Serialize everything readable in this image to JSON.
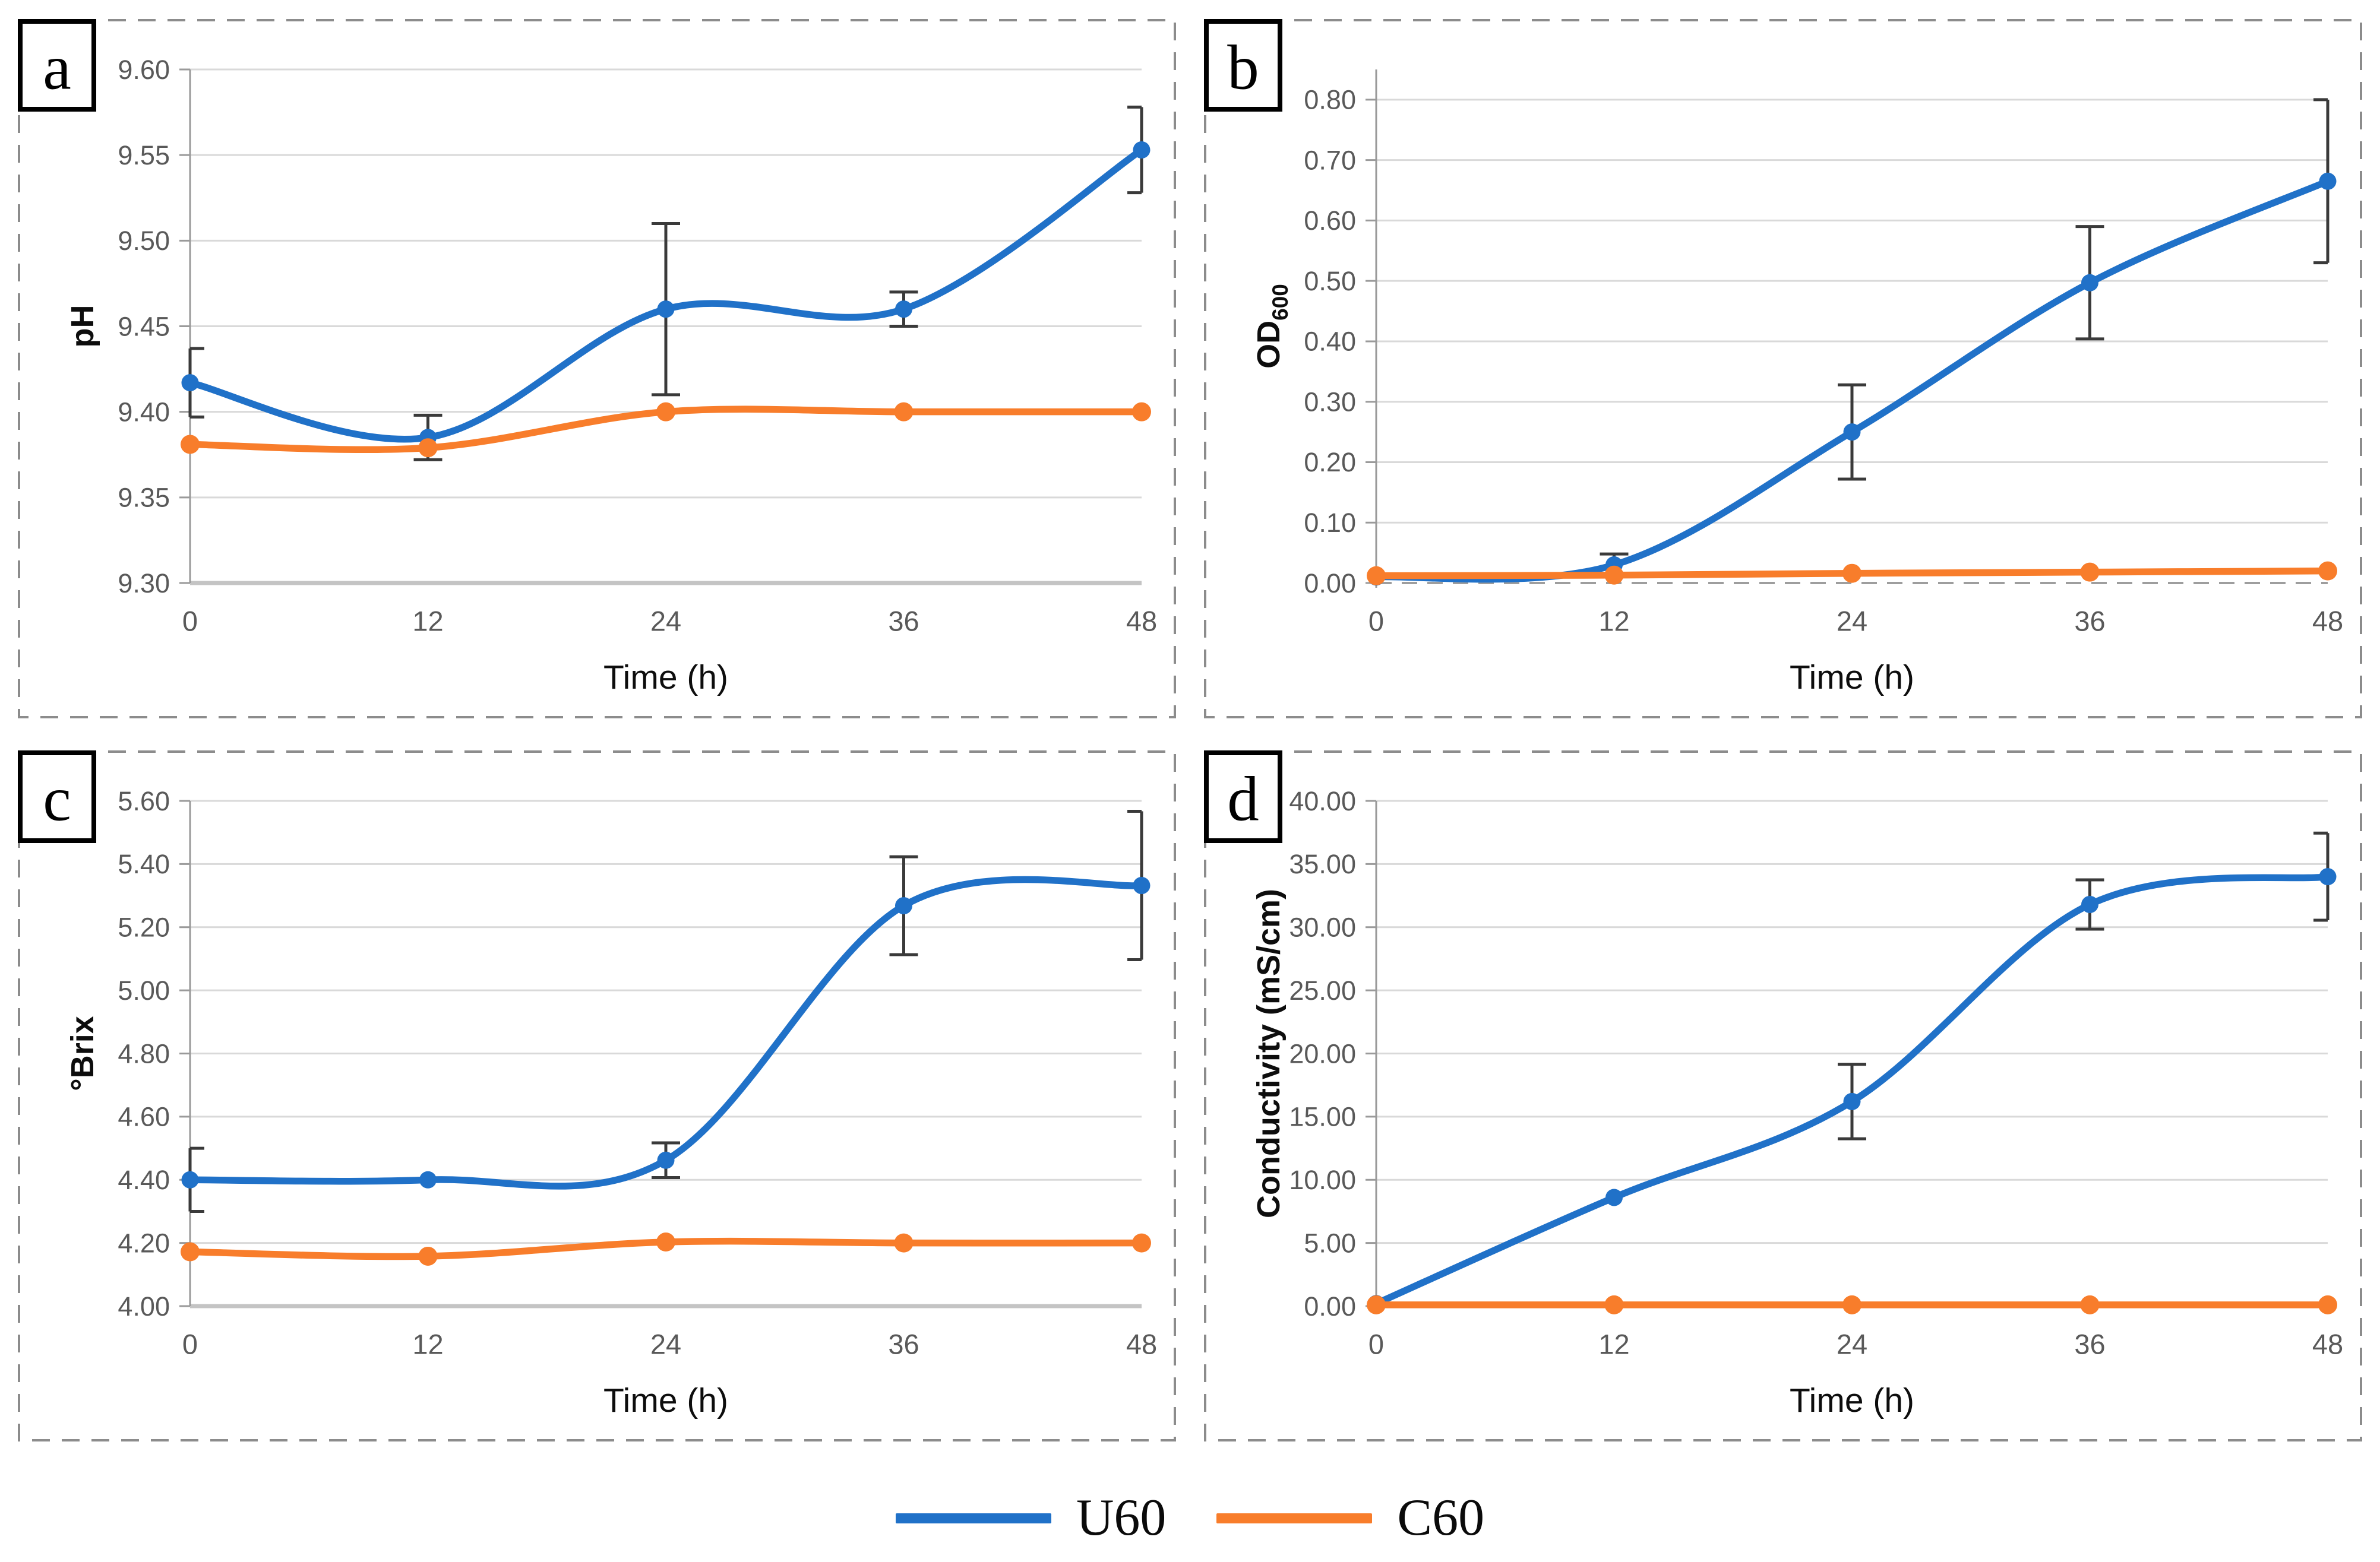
{
  "colors": {
    "u60": "#2071C8",
    "c60": "#F87D2B",
    "grid": "#D9D9D9",
    "grid_bottom": "#C4C4C4",
    "spine": "#9A9A9A",
    "tick_label": "#595959",
    "error_bar": "#3A3A3A",
    "panel_border": "#8C8C8C",
    "letter_box_border": "#000000"
  },
  "legend": {
    "items": [
      {
        "label": "U60",
        "color": "#2071C8"
      },
      {
        "label": "C60",
        "color": "#F87D2B"
      }
    ]
  },
  "chart_data": [
    {
      "panel_label": "a",
      "type": "line",
      "title": "",
      "xlabel": "Time (h)",
      "ylabel": "pH",
      "ylabel_sub": "",
      "x": [
        0,
        12,
        24,
        36,
        48
      ],
      "x_ticks": [
        "0",
        "12",
        "24",
        "36",
        "48"
      ],
      "y_ticks": [
        "9.30",
        "9.35",
        "9.40",
        "9.45",
        "9.50",
        "9.55",
        "9.60"
      ],
      "ylim": [
        9.3,
        9.6
      ],
      "grid": true,
      "legend_position": "none",
      "headroom": 0,
      "zero_dashed": false,
      "series": [
        {
          "name": "U60",
          "color": "#2071C8",
          "values": [
            9.417,
            9.385,
            9.46,
            9.46,
            9.553
          ],
          "errors": [
            0.02,
            0.013,
            0.05,
            0.01,
            0.025
          ]
        },
        {
          "name": "C60",
          "color": "#F87D2B",
          "values": [
            9.381,
            9.379,
            9.4,
            9.4,
            9.4
          ],
          "errors": [
            0,
            0,
            0,
            0,
            0
          ]
        }
      ]
    },
    {
      "panel_label": "b",
      "type": "line",
      "title": "",
      "xlabel": "Time (h)",
      "ylabel": "OD",
      "ylabel_sub": "600",
      "x": [
        0,
        12,
        24,
        36,
        48
      ],
      "x_ticks": [
        "0",
        "12",
        "24",
        "36",
        "48"
      ],
      "y_ticks": [
        "0.00",
        "0.10",
        "0.20",
        "0.30",
        "0.40",
        "0.50",
        "0.60",
        "0.70",
        "0.80"
      ],
      "ylim": [
        0,
        0.8
      ],
      "grid": true,
      "legend_position": "none",
      "headroom": 0.05,
      "zero_dashed": true,
      "series": [
        {
          "name": "U60",
          "color": "#2071C8",
          "values": [
            0.01,
            0.03,
            0.25,
            0.497,
            0.665
          ],
          "errors": [
            0,
            0.018,
            0.078,
            0.093,
            0.135
          ]
        },
        {
          "name": "C60",
          "color": "#F87D2B",
          "values": [
            0.012,
            0.013,
            0.016,
            0.018,
            0.02
          ],
          "errors": [
            0,
            0,
            0,
            0,
            0
          ]
        }
      ]
    },
    {
      "panel_label": "c",
      "type": "line",
      "title": "",
      "xlabel": "Time (h)",
      "ylabel": "°Brix",
      "ylabel_sub": "",
      "x": [
        0,
        12,
        24,
        36,
        48
      ],
      "x_ticks": [
        "0",
        "12",
        "24",
        "36",
        "48"
      ],
      "y_ticks": [
        "4.00",
        "4.20",
        "4.40",
        "4.60",
        "4.80",
        "5.00",
        "5.20",
        "5.40",
        "5.60"
      ],
      "ylim": [
        4.0,
        5.6
      ],
      "grid": true,
      "legend_position": "none",
      "headroom": 0,
      "zero_dashed": false,
      "series": [
        {
          "name": "U60",
          "color": "#2071C8",
          "values": [
            4.4,
            4.4,
            4.462,
            5.268,
            5.332
          ],
          "errors": [
            0.1,
            0,
            0.055,
            0.155,
            0.235
          ]
        },
        {
          "name": "C60",
          "color": "#F87D2B",
          "values": [
            4.172,
            4.158,
            4.203,
            4.2,
            4.2
          ],
          "errors": [
            0,
            0,
            0,
            0,
            0
          ]
        }
      ]
    },
    {
      "panel_label": "d",
      "type": "line",
      "title": "",
      "xlabel": "Time (h)",
      "ylabel": "Conductivity (mS/cm)",
      "ylabel_sub": "",
      "x": [
        0,
        12,
        24,
        36,
        48
      ],
      "x_ticks": [
        "0",
        "12",
        "24",
        "36",
        "48"
      ],
      "y_ticks": [
        "0.00",
        "5.00",
        "10.00",
        "15.00",
        "20.00",
        "25.00",
        "30.00",
        "35.00",
        "40.00"
      ],
      "ylim": [
        0,
        40
      ],
      "grid": true,
      "legend_position": "none",
      "headroom": 0,
      "zero_dashed": false,
      "series": [
        {
          "name": "U60",
          "color": "#2071C8",
          "values": [
            0.2,
            8.6,
            16.2,
            31.8,
            34.0
          ],
          "errors": [
            0,
            0,
            2.95,
            1.95,
            3.45
          ]
        },
        {
          "name": "C60",
          "color": "#F87D2B",
          "values": [
            0.1,
            0.1,
            0.1,
            0.1,
            0.1
          ],
          "errors": [
            0,
            0,
            0,
            0,
            0
          ]
        }
      ]
    }
  ]
}
